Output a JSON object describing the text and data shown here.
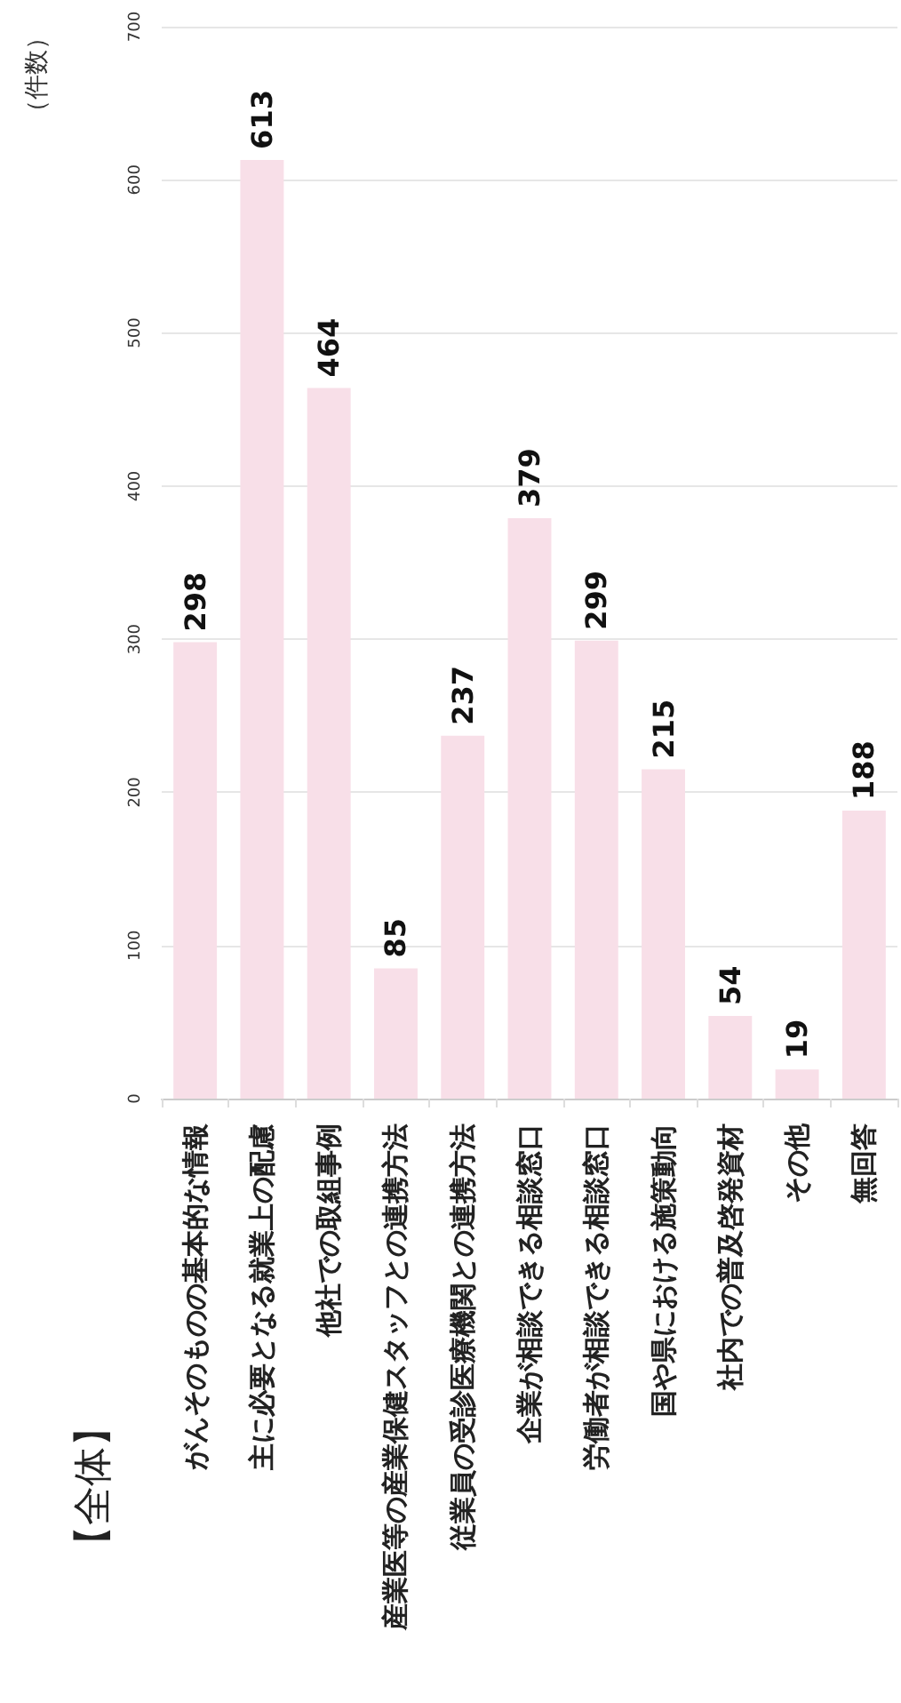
{
  "chart_data": {
    "type": "bar",
    "title": "【全体】",
    "ylabel": "（件数）",
    "categories": [
      "がんそのものの基本的な情報",
      "主に必要となる就業上の配慮",
      "他社での取組事例",
      "産業医等の産業保健スタッフとの連携方法",
      "従業員の受診医療機関との連携方法",
      "企業が相談できる相談窓口",
      "労働者が相談できる相談窓口",
      "国や県における施策動向",
      "社内での普及啓発資材",
      "その他",
      "無回答"
    ],
    "values": [
      298,
      613,
      464,
      85,
      237,
      379,
      299,
      215,
      54,
      19,
      188
    ],
    "color": "#f8dfe8",
    "ylim": [
      0,
      700
    ],
    "yticks": [
      0,
      100,
      200,
      300,
      400,
      500,
      600,
      700
    ],
    "grid": "y",
    "data_labels": true
  }
}
